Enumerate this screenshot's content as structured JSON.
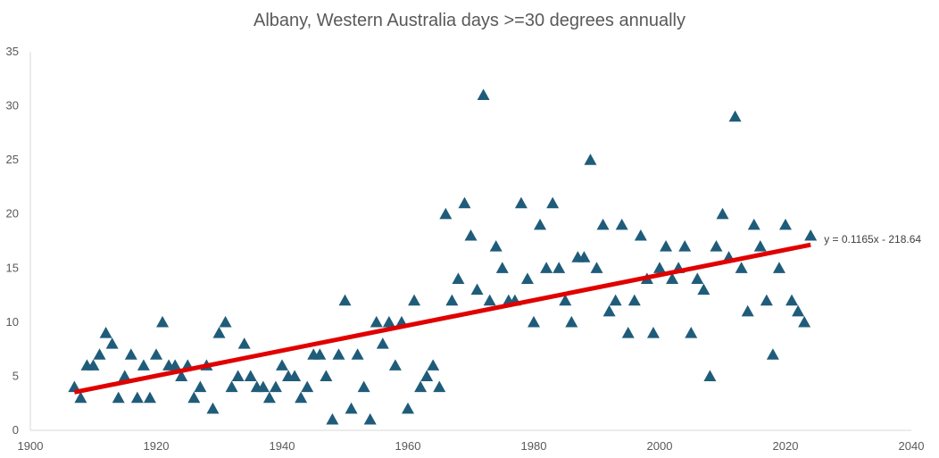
{
  "chart_data": {
    "type": "scatter",
    "title": "Albany, Western Australia days >=30 degrees annually",
    "xlabel": "",
    "ylabel": "",
    "xlim": [
      1900,
      2040
    ],
    "ylim": [
      0,
      35
    ],
    "xticks": [
      1900,
      1920,
      1940,
      1960,
      1980,
      2000,
      2020,
      2040
    ],
    "yticks": [
      0,
      5,
      10,
      15,
      20,
      25,
      30,
      35
    ],
    "grid": false,
    "marker": "triangle",
    "marker_color": "#1f5c7a",
    "series": [
      {
        "name": "Days >=30 degrees",
        "points": [
          [
            1907,
            4
          ],
          [
            1908,
            3
          ],
          [
            1909,
            6
          ],
          [
            1910,
            6
          ],
          [
            1911,
            7
          ],
          [
            1912,
            9
          ],
          [
            1913,
            8
          ],
          [
            1914,
            3
          ],
          [
            1915,
            5
          ],
          [
            1916,
            7
          ],
          [
            1917,
            3
          ],
          [
            1918,
            6
          ],
          [
            1919,
            3
          ],
          [
            1920,
            7
          ],
          [
            1921,
            10
          ],
          [
            1922,
            6
          ],
          [
            1923,
            6
          ],
          [
            1924,
            5
          ],
          [
            1925,
            6
          ],
          [
            1926,
            3
          ],
          [
            1927,
            4
          ],
          [
            1928,
            6
          ],
          [
            1929,
            2
          ],
          [
            1930,
            9
          ],
          [
            1931,
            10
          ],
          [
            1932,
            4
          ],
          [
            1933,
            5
          ],
          [
            1934,
            8
          ],
          [
            1935,
            5
          ],
          [
            1936,
            4
          ],
          [
            1937,
            4
          ],
          [
            1938,
            3
          ],
          [
            1939,
            4
          ],
          [
            1940,
            6
          ],
          [
            1941,
            5
          ],
          [
            1942,
            5
          ],
          [
            1943,
            3
          ],
          [
            1944,
            4
          ],
          [
            1945,
            7
          ],
          [
            1946,
            7
          ],
          [
            1947,
            5
          ],
          [
            1948,
            1
          ],
          [
            1949,
            7
          ],
          [
            1950,
            12
          ],
          [
            1951,
            2
          ],
          [
            1952,
            7
          ],
          [
            1953,
            4
          ],
          [
            1954,
            1
          ],
          [
            1955,
            10
          ],
          [
            1956,
            8
          ],
          [
            1957,
            10
          ],
          [
            1958,
            6
          ],
          [
            1959,
            10
          ],
          [
            1960,
            2
          ],
          [
            1961,
            12
          ],
          [
            1962,
            4
          ],
          [
            1963,
            5
          ],
          [
            1964,
            6
          ],
          [
            1965,
            4
          ],
          [
            1966,
            20
          ],
          [
            1967,
            12
          ],
          [
            1968,
            14
          ],
          [
            1969,
            21
          ],
          [
            1970,
            18
          ],
          [
            1971,
            13
          ],
          [
            1972,
            31
          ],
          [
            1973,
            12
          ],
          [
            1974,
            17
          ],
          [
            1975,
            15
          ],
          [
            1976,
            12
          ],
          [
            1977,
            12
          ],
          [
            1978,
            21
          ],
          [
            1979,
            14
          ],
          [
            1980,
            10
          ],
          [
            1981,
            19
          ],
          [
            1982,
            15
          ],
          [
            1983,
            21
          ],
          [
            1984,
            15
          ],
          [
            1985,
            12
          ],
          [
            1986,
            10
          ],
          [
            1987,
            16
          ],
          [
            1988,
            16
          ],
          [
            1989,
            25
          ],
          [
            1990,
            15
          ],
          [
            1991,
            19
          ],
          [
            1992,
            11
          ],
          [
            1993,
            12
          ],
          [
            1994,
            19
          ],
          [
            1995,
            9
          ],
          [
            1996,
            12
          ],
          [
            1997,
            18
          ],
          [
            1998,
            14
          ],
          [
            1999,
            9
          ],
          [
            2000,
            15
          ],
          [
            2001,
            17
          ],
          [
            2002,
            14
          ],
          [
            2003,
            15
          ],
          [
            2004,
            17
          ],
          [
            2005,
            9
          ],
          [
            2006,
            14
          ],
          [
            2007,
            13
          ],
          [
            2008,
            5
          ],
          [
            2009,
            17
          ],
          [
            2010,
            20
          ],
          [
            2011,
            16
          ],
          [
            2012,
            29
          ],
          [
            2013,
            15
          ],
          [
            2014,
            11
          ],
          [
            2015,
            19
          ],
          [
            2016,
            17
          ],
          [
            2017,
            12
          ],
          [
            2018,
            7
          ],
          [
            2019,
            15
          ],
          [
            2020,
            19
          ],
          [
            2021,
            12
          ],
          [
            2022,
            11
          ],
          [
            2023,
            10
          ],
          [
            2024,
            18
          ]
        ]
      }
    ],
    "trendline": {
      "type": "linear",
      "slope": 0.1165,
      "intercept": -218.64,
      "x_range": [
        1907,
        2024
      ],
      "color": "#e00000",
      "label": "y = 0.1165x - 218.64"
    }
  }
}
